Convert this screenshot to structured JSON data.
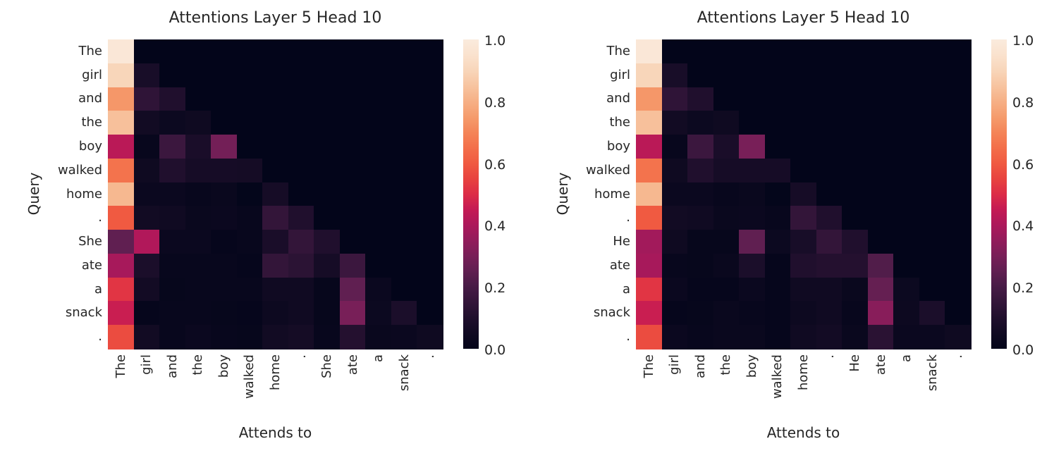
{
  "figure": {
    "background": "#ffffff",
    "text_color": "#262626"
  },
  "colormap": {
    "name": "rocket",
    "anchors": [
      [
        0.0,
        [
          3,
          5,
          26
        ]
      ],
      [
        0.05,
        [
          16,
          10,
          34
        ]
      ],
      [
        0.1,
        [
          32,
          15,
          45
        ]
      ],
      [
        0.15,
        [
          51,
          21,
          57
        ]
      ],
      [
        0.2,
        [
          71,
          27,
          70
        ]
      ],
      [
        0.25,
        [
          96,
          31,
          81
        ]
      ],
      [
        0.3,
        [
          120,
          31,
          88
        ]
      ],
      [
        0.35,
        [
          146,
          28,
          91
        ]
      ],
      [
        0.4,
        [
          172,
          24,
          91
        ]
      ],
      [
        0.45,
        [
          196,
          26,
          84
        ]
      ],
      [
        0.5,
        [
          220,
          44,
          71
        ]
      ],
      [
        0.55,
        [
          232,
          67,
          63
        ]
      ],
      [
        0.6,
        [
          240,
          90,
          65
        ]
      ],
      [
        0.65,
        [
          243,
          111,
          74
        ]
      ],
      [
        0.7,
        [
          244,
          133,
          88
        ]
      ],
      [
        0.75,
        [
          245,
          156,
          109
        ]
      ],
      [
        0.8,
        [
          246,
          176,
          134
        ]
      ],
      [
        0.85,
        [
          247,
          196,
          160
        ]
      ],
      [
        0.9,
        [
          248,
          214,
          186
        ]
      ],
      [
        0.95,
        [
          250,
          226,
          206
        ]
      ],
      [
        1.0,
        [
          250,
          235,
          221
        ]
      ]
    ]
  },
  "chart_data": [
    {
      "type": "heatmap",
      "title": "Attentions Layer 5 Head 10",
      "xlabel": "Attends to",
      "ylabel": "Query",
      "x_tokens": [
        "The",
        "girl",
        "and",
        "the",
        "boy",
        "walked",
        "home",
        ".",
        "She",
        "ate",
        "a",
        "snack",
        "."
      ],
      "y_tokens": [
        "The",
        "girl",
        "and",
        "the",
        "boy",
        "walked",
        "home",
        ".",
        "She",
        "ate",
        "a",
        "snack",
        "."
      ],
      "vmin": 0.0,
      "vmax": 1.0,
      "colorbar_ticks": [
        "1.0",
        "0.8",
        "0.6",
        "0.4",
        "0.2",
        "0.0"
      ],
      "values": [
        [
          0.98,
          0,
          0,
          0,
          0,
          0,
          0,
          0,
          0,
          0,
          0,
          0,
          0
        ],
        [
          0.9,
          0.075,
          0,
          0,
          0,
          0,
          0,
          0,
          0,
          0,
          0,
          0,
          0
        ],
        [
          0.74,
          0.14,
          0.1,
          0,
          0,
          0,
          0,
          0,
          0,
          0,
          0,
          0,
          0
        ],
        [
          0.84,
          0.055,
          0.035,
          0.045,
          0,
          0,
          0,
          0,
          0,
          0,
          0,
          0,
          0
        ],
        [
          0.43,
          0.02,
          0.17,
          0.08,
          0.29,
          0,
          0,
          0,
          0,
          0,
          0,
          0,
          0
        ],
        [
          0.66,
          0.045,
          0.1,
          0.07,
          0.07,
          0.065,
          0,
          0,
          0,
          0,
          0,
          0,
          0
        ],
        [
          0.82,
          0.03,
          0.03,
          0.02,
          0.025,
          0.005,
          0.07,
          0,
          0,
          0,
          0,
          0,
          0
        ],
        [
          0.6,
          0.055,
          0.05,
          0.025,
          0.03,
          0.02,
          0.15,
          0.1,
          0,
          0,
          0,
          0,
          0
        ],
        [
          0.25,
          0.41,
          0.03,
          0.03,
          0.01,
          0.02,
          0.08,
          0.15,
          0.1,
          0,
          0,
          0,
          0
        ],
        [
          0.39,
          0.085,
          0.02,
          0.02,
          0.02,
          0.01,
          0.15,
          0.13,
          0.07,
          0.17,
          0,
          0,
          0
        ],
        [
          0.52,
          0.06,
          0.015,
          0.02,
          0.02,
          0.02,
          0.05,
          0.05,
          0.015,
          0.25,
          0.03,
          0,
          0
        ],
        [
          0.46,
          0.01,
          0.02,
          0.02,
          0.015,
          0.01,
          0.04,
          0.05,
          0.015,
          0.3,
          0.035,
          0.085,
          0
        ],
        [
          0.57,
          0.055,
          0.02,
          0.03,
          0.02,
          0.015,
          0.055,
          0.065,
          0.02,
          0.11,
          0.025,
          0.03,
          0.045
        ]
      ]
    },
    {
      "type": "heatmap",
      "title": "Attentions Layer 5 Head 10",
      "xlabel": "Attends to",
      "ylabel": "Query",
      "x_tokens": [
        "The",
        "girl",
        "and",
        "the",
        "boy",
        "walked",
        "home",
        ".",
        "He",
        "ate",
        "a",
        "snack",
        "."
      ],
      "y_tokens": [
        "The",
        "girl",
        "and",
        "the",
        "boy",
        "walked",
        "home",
        ".",
        "He",
        "ate",
        "a",
        "snack",
        "."
      ],
      "vmin": 0.0,
      "vmax": 1.0,
      "colorbar_ticks": [
        "1.0",
        "0.8",
        "0.6",
        "0.4",
        "0.2",
        "0.0"
      ],
      "values": [
        [
          0.98,
          0,
          0,
          0,
          0,
          0,
          0,
          0,
          0,
          0,
          0,
          0,
          0
        ],
        [
          0.9,
          0.075,
          0,
          0,
          0,
          0,
          0,
          0,
          0,
          0,
          0,
          0,
          0
        ],
        [
          0.74,
          0.14,
          0.1,
          0,
          0,
          0,
          0,
          0,
          0,
          0,
          0,
          0,
          0
        ],
        [
          0.84,
          0.055,
          0.035,
          0.045,
          0,
          0,
          0,
          0,
          0,
          0,
          0,
          0,
          0
        ],
        [
          0.43,
          0.02,
          0.17,
          0.08,
          0.3,
          0,
          0,
          0,
          0,
          0,
          0,
          0,
          0
        ],
        [
          0.66,
          0.045,
          0.1,
          0.07,
          0.07,
          0.07,
          0,
          0,
          0,
          0,
          0,
          0,
          0
        ],
        [
          0.82,
          0.03,
          0.03,
          0.02,
          0.025,
          0.005,
          0.07,
          0,
          0,
          0,
          0,
          0,
          0
        ],
        [
          0.6,
          0.055,
          0.05,
          0.025,
          0.03,
          0.02,
          0.15,
          0.1,
          0,
          0,
          0,
          0,
          0
        ],
        [
          0.38,
          0.045,
          0.015,
          0.015,
          0.25,
          0.035,
          0.075,
          0.15,
          0.1,
          0,
          0,
          0,
          0
        ],
        [
          0.39,
          0.02,
          0.015,
          0.025,
          0.085,
          0.01,
          0.1,
          0.11,
          0.11,
          0.22,
          0,
          0,
          0
        ],
        [
          0.52,
          0.03,
          0.01,
          0.01,
          0.03,
          0.01,
          0.05,
          0.05,
          0.025,
          0.26,
          0.035,
          0,
          0
        ],
        [
          0.46,
          0.01,
          0.015,
          0.025,
          0.02,
          0.01,
          0.04,
          0.05,
          0.02,
          0.33,
          0.04,
          0.085,
          0
        ],
        [
          0.57,
          0.03,
          0.02,
          0.025,
          0.025,
          0.01,
          0.05,
          0.06,
          0.025,
          0.125,
          0.03,
          0.03,
          0.045
        ]
      ]
    }
  ]
}
